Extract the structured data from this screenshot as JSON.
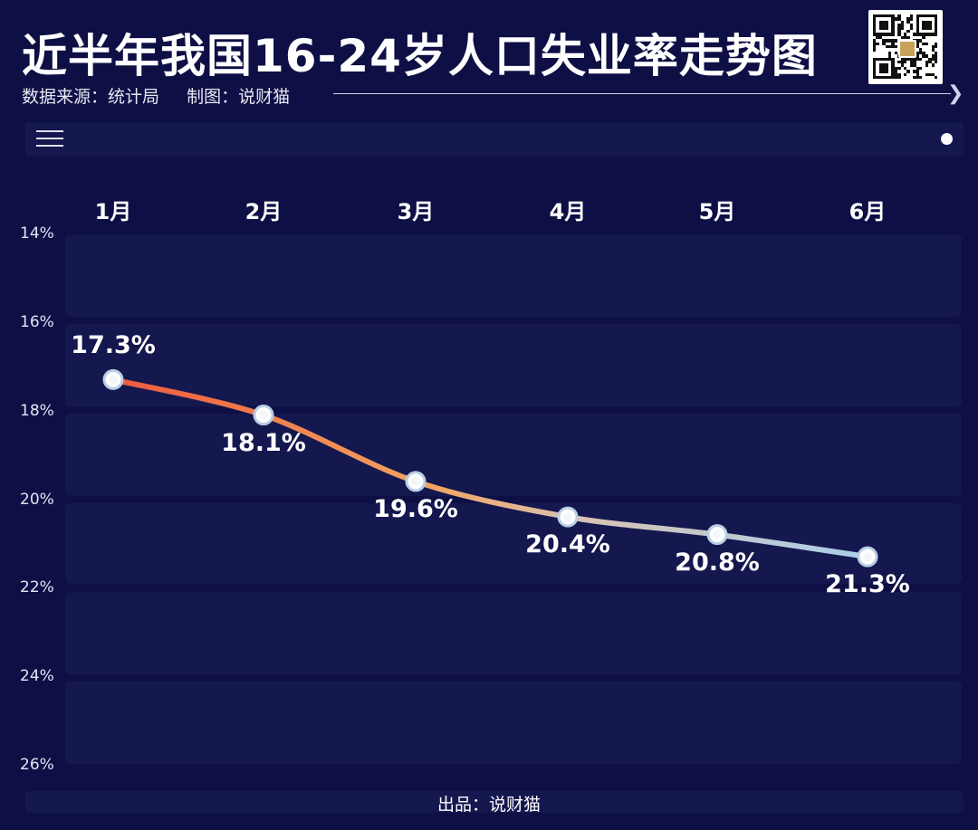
{
  "header": {
    "title": "近半年我国16-24岁人口失业率走势图",
    "source": "数据来源：统计局",
    "maker": "制图：说财猫"
  },
  "footer": {
    "text": "出品：说财猫"
  },
  "icons": [
    "qr-code-icon",
    "menu-icon",
    "dot-icon",
    "arrow-right-icon"
  ],
  "colors": {
    "background": "#0e0f45",
    "panel": "#15174f",
    "line_start": "#ee5a3c",
    "line_mid": "#f2a560",
    "line_end": "#a9cfea"
  },
  "chart_data": {
    "type": "line",
    "categories": [
      "1月",
      "2月",
      "3月",
      "4月",
      "5月",
      "6月"
    ],
    "values": [
      17.3,
      18.1,
      19.6,
      20.4,
      20.8,
      21.3
    ],
    "data_labels": [
      "17.3%",
      "18.1%",
      "19.6%",
      "20.4%",
      "20.8%",
      "21.3%"
    ],
    "y_ticks": [
      "14%",
      "16%",
      "18%",
      "20%",
      "22%",
      "24%",
      "26%"
    ],
    "y_tick_values": [
      14,
      16,
      18,
      20,
      22,
      24,
      26
    ],
    "ylim": [
      14,
      26
    ],
    "y_inverted": true,
    "x_axis_position": "top",
    "grid": false
  }
}
